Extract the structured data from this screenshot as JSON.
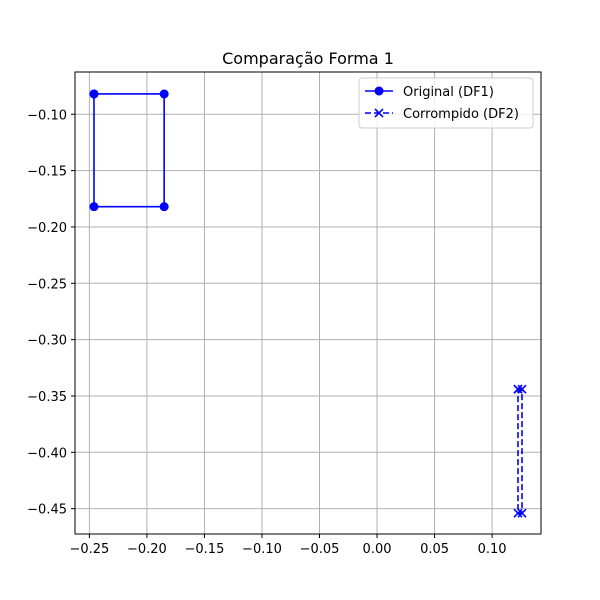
{
  "chart_data": {
    "type": "line",
    "title": "Comparação Forma 1",
    "xlabel": "",
    "ylabel": "",
    "xlim": [
      -0.2625,
      0.1425
    ],
    "ylim": [
      -0.4725,
      -0.0625
    ],
    "xticks": [
      -0.25,
      -0.2,
      -0.15,
      -0.1,
      -0.05,
      0.0,
      0.05,
      0.1
    ],
    "xtick_labels": [
      "−0.25",
      "−0.20",
      "−0.15",
      "−0.10",
      "−0.05",
      "0.00",
      "0.05",
      "0.10"
    ],
    "yticks": [
      -0.1,
      -0.15,
      -0.2,
      -0.25,
      -0.3,
      -0.35,
      -0.4,
      -0.45
    ],
    "ytick_labels": [
      "−0.10",
      "−0.15",
      "−0.20",
      "−0.25",
      "−0.30",
      "−0.35",
      "−0.40",
      "−0.45"
    ],
    "grid": true,
    "legend_position": "top-right",
    "series": [
      {
        "name": "Original (DF1)",
        "color": "#0000ff",
        "linestyle": "solid",
        "marker": "circle",
        "x": [
          -0.246,
          -0.185,
          -0.185,
          -0.246,
          -0.246
        ],
        "y": [
          -0.082,
          -0.082,
          -0.182,
          -0.182,
          -0.082
        ]
      },
      {
        "name": "Corrompido (DF2)",
        "color": "#0000ff",
        "linestyle": "dashed",
        "marker": "x",
        "x": [
          0.1225,
          0.126,
          0.126,
          0.1225,
          0.1225
        ],
        "y": [
          -0.344,
          -0.344,
          -0.454,
          -0.454,
          -0.344
        ]
      }
    ]
  }
}
